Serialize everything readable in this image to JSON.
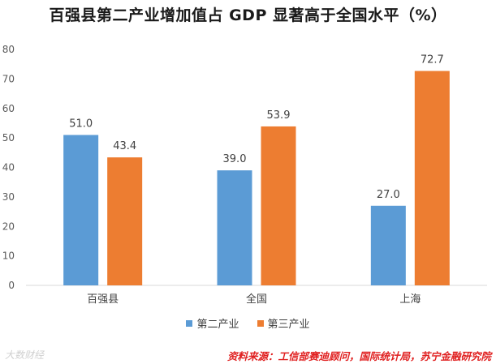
{
  "chart_data": {
    "type": "bar",
    "title": "百强县第二产业增加值占 GDP 显著高于全国水平（%）",
    "categories": [
      "百强县",
      "全国",
      "上海"
    ],
    "series": [
      {
        "name": "第二产业",
        "values": [
          51.0,
          39.0,
          27.0
        ],
        "labels": [
          "51.0",
          "39.0",
          "27.0"
        ],
        "color": "#5b9bd5"
      },
      {
        "name": "第三产业",
        "values": [
          43.4,
          53.9,
          72.7
        ],
        "labels": [
          "43.4",
          "53.9",
          "72.7"
        ],
        "color": "#ed7d31"
      }
    ],
    "ylim": [
      0,
      80
    ],
    "yticks": [
      0,
      10,
      20,
      30,
      40,
      50,
      60,
      70,
      80
    ],
    "ytick_labels": [
      "0",
      "10",
      "20",
      "30",
      "40",
      "50",
      "60",
      "70",
      "80"
    ],
    "grid": false,
    "legend_position": "bottom-center"
  },
  "footer": {
    "watermark": "大数财经",
    "source": "资料来源：工信部赛迪顾问，国际统计局，苏宁金融研究院"
  }
}
